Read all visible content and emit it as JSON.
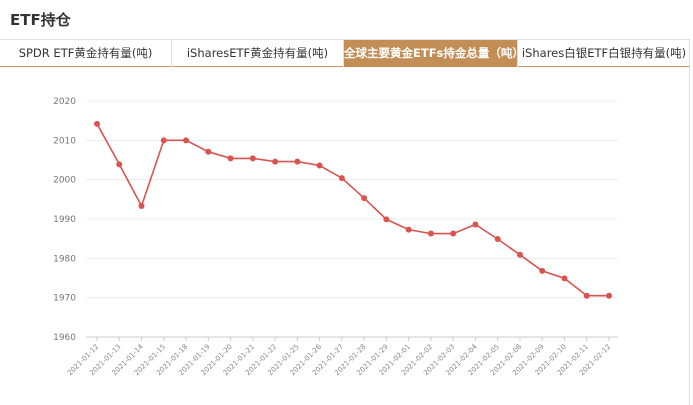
{
  "header": {
    "title": "ETF持仓"
  },
  "tabs": [
    {
      "label": "SPDR ETF黄金持有量(吨)",
      "active": false
    },
    {
      "label": "iSharesETF黄金持有量(吨)",
      "active": false
    },
    {
      "label": "全球主要黄金ETFs持金总量（吨）",
      "active": true
    },
    {
      "label": "iShares白银ETF白银持有量(吨)",
      "active": false
    }
  ],
  "chart_data": {
    "type": "line",
    "title": "",
    "xlabel": "",
    "ylabel": "",
    "ylim": [
      1960,
      2020
    ],
    "yticks": [
      "1960",
      "1970",
      "1980",
      "1990",
      "2000",
      "2010",
      "2020"
    ],
    "grid": true,
    "color": "#d9534f",
    "categories": [
      "2021-01-12",
      "2021-01-13",
      "2021-01-14",
      "2021-01-15",
      "2021-01-18",
      "2021-01-19",
      "2021-01-20",
      "2021-01-21",
      "2021-01-22",
      "2021-01-25",
      "2021-01-26",
      "2021-01-27",
      "2021-01-28",
      "2021-01-29",
      "2021-02-01",
      "2021-02-02",
      "2021-02-03",
      "2021-02-04",
      "2021-02-05",
      "2021-02-08",
      "2021-02-09",
      "2021-02-10",
      "2021-02-11",
      "2021-02-12"
    ],
    "values": [
      2014.2,
      2003.9,
      1993.3,
      2010.0,
      2010.0,
      2007.1,
      2005.4,
      2005.4,
      2004.6,
      2004.6,
      2003.6,
      2000.4,
      1995.3,
      1989.9,
      1987.3,
      1986.3,
      1986.3,
      1988.6,
      1984.9,
      1980.9,
      1976.8,
      1974.9,
      1970.5,
      1970.5
    ]
  }
}
